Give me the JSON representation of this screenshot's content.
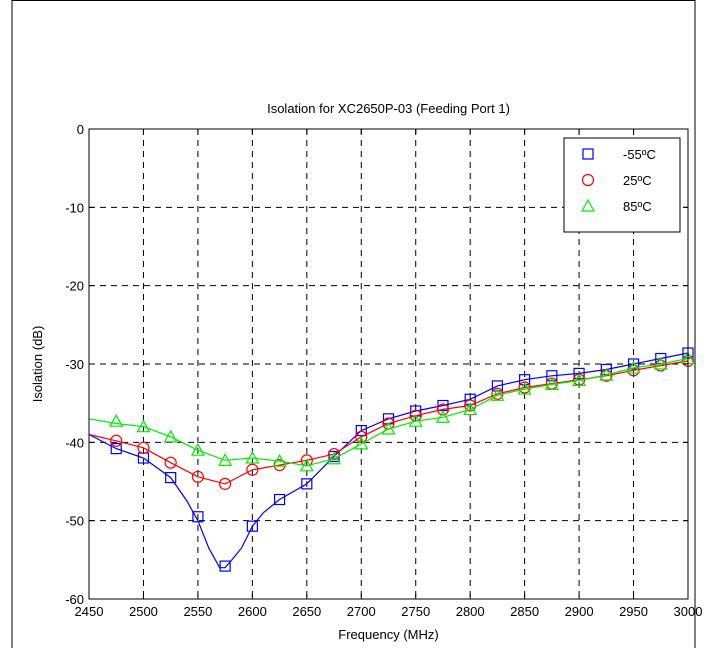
{
  "chart_data": {
    "type": "line",
    "title": "Isolation for XC2650P-03 (Feeding Port 1)",
    "xlabel": "Frequency (MHz)",
    "ylabel": "Isolation (dB)",
    "xlim": [
      2450,
      3000
    ],
    "ylim": [
      -60,
      0
    ],
    "xticks": [
      2450,
      2500,
      2550,
      2600,
      2650,
      2700,
      2750,
      2800,
      2850,
      2900,
      2950,
      3000
    ],
    "yticks": [
      0,
      -10,
      -20,
      -30,
      -40,
      -50,
      -60
    ],
    "grid": true,
    "legend_position": "top-right",
    "series": [
      {
        "name": "-55ºC",
        "color": "#0000ff",
        "marker": "square",
        "line_x": [
          2450,
          2475,
          2500,
          2525,
          2540,
          2550,
          2560,
          2570,
          2575,
          2580,
          2590,
          2600,
          2610,
          2625,
          2650,
          2675,
          2700,
          2725,
          2750,
          2775,
          2800,
          2825,
          2850,
          2875,
          2900,
          2925,
          2950,
          2975,
          3000
        ],
        "line_y": [
          -39,
          -40.8,
          -42,
          -44.5,
          -47.5,
          -50,
          -53.5,
          -56,
          -56,
          -55.2,
          -53.5,
          -50.7,
          -49,
          -47.3,
          -45.3,
          -41.8,
          -38.5,
          -37,
          -36,
          -35.3,
          -34.5,
          -32.8,
          -32,
          -31.5,
          -31.2,
          -30.7,
          -30,
          -29.3,
          -28.6
        ],
        "marker_x": [
          2475,
          2500,
          2525,
          2550,
          2575,
          2600,
          2625,
          2650,
          2675,
          2700,
          2725,
          2750,
          2775,
          2800,
          2825,
          2850,
          2875,
          2900,
          2925,
          2950,
          2975,
          3000
        ],
        "marker_y": [
          -40.8,
          -42,
          -44.5,
          -49.5,
          -55.8,
          -50.7,
          -47.3,
          -45.3,
          -41.8,
          -38.5,
          -37,
          -36,
          -35.3,
          -34.5,
          -32.8,
          -32,
          -31.5,
          -31.2,
          -30.7,
          -30,
          -29.3,
          -28.6
        ]
      },
      {
        "name": "25ºC",
        "color": "#ff0000",
        "marker": "circle",
        "line_x": [
          2450,
          2475,
          2500,
          2525,
          2550,
          2575,
          2600,
          2625,
          2650,
          2675,
          2700,
          2725,
          2750,
          2775,
          2800,
          2825,
          2850,
          2875,
          2900,
          2925,
          2950,
          2975,
          3000
        ],
        "line_y": [
          -39,
          -39.8,
          -40.7,
          -42.6,
          -44.4,
          -45.3,
          -43.5,
          -42.9,
          -42.3,
          -41.5,
          -39.3,
          -37.6,
          -36.6,
          -35.8,
          -35.3,
          -33.8,
          -33,
          -32.5,
          -32,
          -31.5,
          -30.8,
          -30.2,
          -29.6
        ],
        "marker_x": [
          2475,
          2500,
          2525,
          2550,
          2575,
          2600,
          2625,
          2650,
          2675,
          2700,
          2725,
          2750,
          2775,
          2800,
          2825,
          2850,
          2875,
          2900,
          2925,
          2950,
          2975,
          3000
        ],
        "marker_y": [
          -39.8,
          -40.7,
          -42.6,
          -44.4,
          -45.3,
          -43.5,
          -42.9,
          -42.3,
          -41.5,
          -39.3,
          -37.6,
          -36.6,
          -35.8,
          -35.3,
          -33.8,
          -33,
          -32.5,
          -32,
          -31.5,
          -30.8,
          -30.2,
          -29.6
        ]
      },
      {
        "name": "85ºC",
        "color": "#00ee00",
        "marker": "triangle",
        "line_x": [
          2450,
          2475,
          2500,
          2525,
          2550,
          2575,
          2600,
          2625,
          2650,
          2675,
          2700,
          2725,
          2750,
          2775,
          2800,
          2825,
          2850,
          2875,
          2900,
          2925,
          2950,
          2975,
          3000
        ],
        "line_y": [
          -37,
          -37.6,
          -38,
          -39.3,
          -41,
          -42.3,
          -42,
          -42.4,
          -43,
          -42.1,
          -40.2,
          -38.3,
          -37.3,
          -36.8,
          -35.8,
          -34,
          -33.2,
          -32.6,
          -32.1,
          -31.4,
          -30.5,
          -30,
          -29.3
        ],
        "marker_x": [
          2475,
          2500,
          2525,
          2550,
          2575,
          2600,
          2625,
          2650,
          2675,
          2700,
          2725,
          2750,
          2775,
          2800,
          2825,
          2850,
          2875,
          2900,
          2925,
          2950,
          2975,
          3000
        ],
        "marker_y": [
          -37.3,
          -38,
          -39.3,
          -41,
          -42.3,
          -42,
          -42.4,
          -43,
          -42.1,
          -40.2,
          -38.3,
          -37.3,
          -36.8,
          -35.8,
          -34,
          -33.2,
          -32.6,
          -32.1,
          -31.4,
          -30.5,
          -30,
          -29.3
        ]
      }
    ]
  }
}
